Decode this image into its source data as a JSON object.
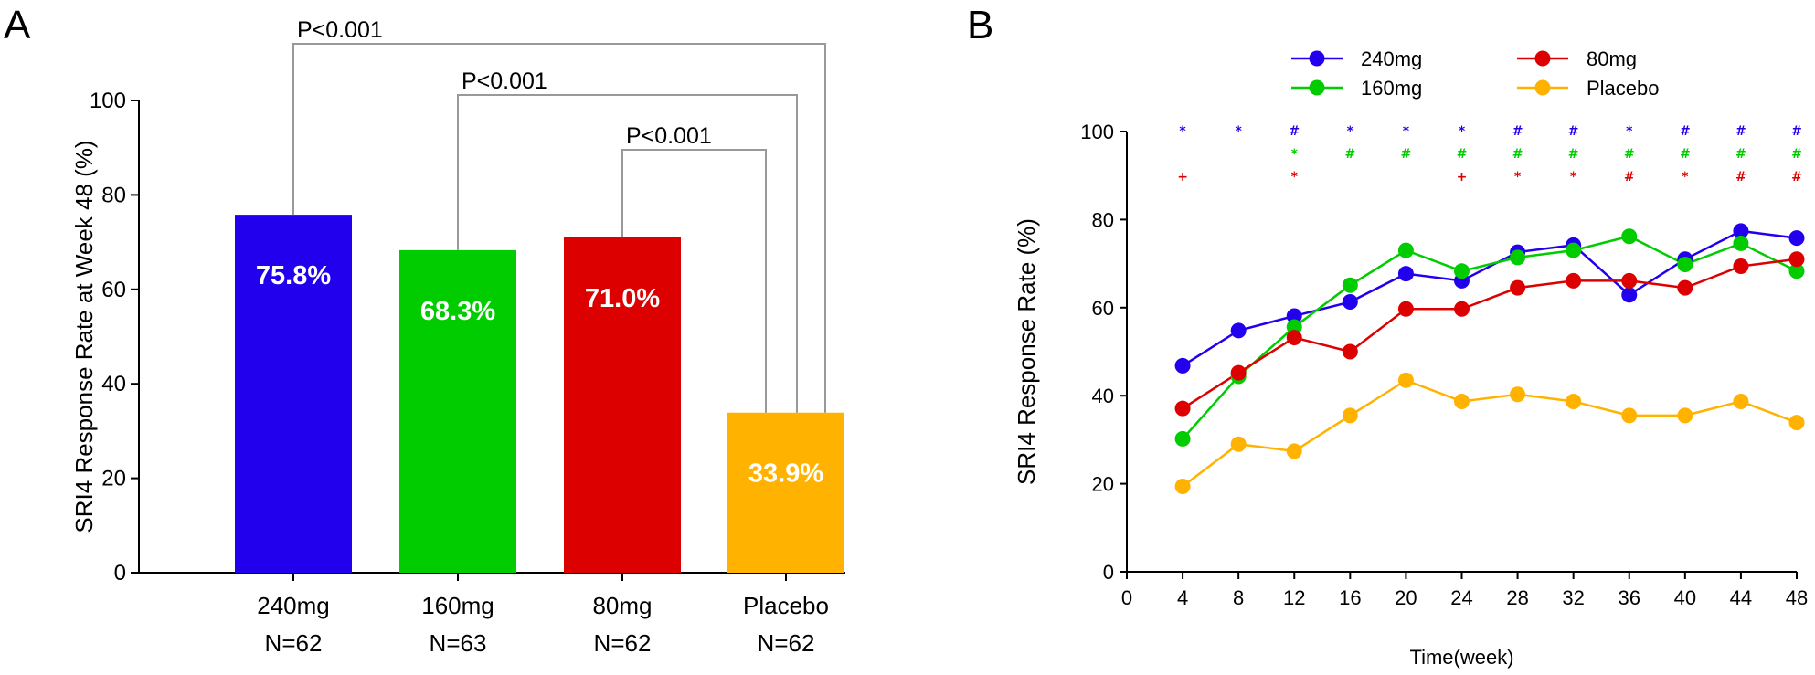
{
  "panels": {
    "a_letter": "A",
    "b_letter": "B"
  },
  "chart_data": [
    {
      "type": "bar",
      "title": "",
      "xlabel": "",
      "ylabel": "SRI4 Response Rate at Week 48 (%)",
      "ylim": [
        0,
        100
      ],
      "yticks": [
        0,
        20,
        40,
        60,
        80,
        100
      ],
      "categories": [
        "240mg",
        "160mg",
        "80mg",
        "Placebo"
      ],
      "category_n": [
        "N=62",
        "N=63",
        "N=62",
        "N=62"
      ],
      "values": [
        75.8,
        68.3,
        71.0,
        33.9
      ],
      "value_labels": [
        "75.8%",
        "68.3%",
        "71.0%",
        "33.9%"
      ],
      "colors": [
        "#2200ee",
        "#00cc00",
        "#dd0000",
        "#ffb300"
      ],
      "comparisons": [
        {
          "from": "240mg",
          "to": "Placebo",
          "label": "P<0.001"
        },
        {
          "from": "160mg",
          "to": "Placebo",
          "label": "P<0.001"
        },
        {
          "from": "80mg",
          "to": "Placebo",
          "label": "P<0.001"
        }
      ],
      "grid": false
    },
    {
      "type": "line",
      "title": "",
      "xlabel": "Time(week)",
      "ylabel": "SRI4 Response Rate  (%)",
      "xlim": [
        0,
        48
      ],
      "ylim": [
        0,
        100
      ],
      "xticks": [
        0,
        4,
        8,
        12,
        16,
        20,
        24,
        28,
        32,
        36,
        40,
        44,
        48
      ],
      "yticks": [
        0,
        20,
        40,
        60,
        80,
        100
      ],
      "x": [
        4,
        8,
        12,
        16,
        20,
        24,
        28,
        32,
        36,
        40,
        44,
        48
      ],
      "legend_position": "top",
      "grid": false,
      "series": [
        {
          "name": "240mg",
          "color": "#2200ee",
          "values": [
            46.8,
            54.8,
            58.1,
            61.3,
            67.7,
            66.1,
            72.6,
            74.2,
            62.9,
            71.0,
            77.4,
            75.8
          ]
        },
        {
          "name": "160mg",
          "color": "#00cc00",
          "values": [
            30.2,
            44.4,
            55.6,
            65.1,
            73.0,
            68.3,
            71.4,
            73.0,
            76.2,
            69.8,
            74.6,
            68.3
          ]
        },
        {
          "name": "80mg",
          "color": "#dd0000",
          "values": [
            37.1,
            45.2,
            53.2,
            50.0,
            59.7,
            59.7,
            64.5,
            66.1,
            66.1,
            64.5,
            69.4,
            71.0
          ]
        },
        {
          "name": "Placebo",
          "color": "#ffb300",
          "values": [
            19.4,
            29.0,
            27.4,
            35.5,
            43.5,
            38.7,
            40.3,
            38.7,
            35.5,
            35.5,
            38.7,
            33.9
          ]
        }
      ],
      "significance_rows": [
        {
          "series": "240mg",
          "color": "#2200ee",
          "marks": [
            "*",
            "*",
            "#",
            "*",
            "*",
            "*",
            "#",
            "#",
            "*",
            "#",
            "#",
            "#"
          ]
        },
        {
          "series": "160mg",
          "color": "#00cc00",
          "marks": [
            "",
            "",
            "*",
            "#",
            "#",
            "#",
            "#",
            "#",
            "#",
            "#",
            "#",
            "#"
          ]
        },
        {
          "series": "80mg",
          "color": "#dd0000",
          "marks": [
            "+",
            "",
            "*",
            "",
            "",
            "+",
            "*",
            "*",
            "#",
            "*",
            "#",
            "#"
          ]
        }
      ]
    }
  ]
}
